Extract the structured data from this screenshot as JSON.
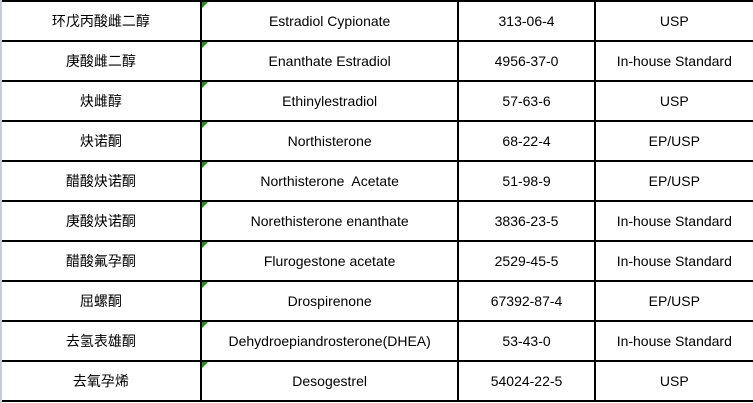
{
  "rows": [
    {
      "name_cn": "环戊丙酸雌二醇",
      "name_en": "Estradiol Cypionate",
      "cas": "313-06-4",
      "standard": "USP"
    },
    {
      "name_cn": "庚酸雌二醇",
      "name_en": "Enanthate Estradiol",
      "cas": "4956-37-0",
      "standard": "In-house Standard"
    },
    {
      "name_cn": "炔雌醇",
      "name_en": "Ethinylestradiol",
      "cas": "57-63-6",
      "standard": "USP"
    },
    {
      "name_cn": "炔诺酮",
      "name_en": "Northisterone",
      "cas": "68-22-4",
      "standard": "EP/USP"
    },
    {
      "name_cn": "醋酸炔诺酮",
      "name_en": "Northisterone  Acetate",
      "cas": "51-98-9",
      "standard": "EP/USP"
    },
    {
      "name_cn": "庚酸炔诺酮",
      "name_en": "Norethisterone enanthate",
      "cas": "3836-23-5",
      "standard": "In-house Standard"
    },
    {
      "name_cn": "醋酸氟孕酮",
      "name_en": "Flurogestone acetate",
      "cas": "2529-45-5",
      "standard": "In-house Standard"
    },
    {
      "name_cn": "屈螺酮",
      "name_en": "Drospirenone",
      "cas": "67392-87-4",
      "standard": "EP/USP"
    },
    {
      "name_cn": "去氢表雄酮",
      "name_en": "Dehydroepiandrosterone(DHEA)",
      "cas": "53-43-0",
      "standard": "In-house Standard"
    },
    {
      "name_cn": "去氧孕烯",
      "name_en": "Desogestrel",
      "cas": "54024-22-5",
      "standard": "USP"
    }
  ],
  "colors": {
    "grid": "#000000",
    "comment_marker": "#1e8e1e"
  }
}
